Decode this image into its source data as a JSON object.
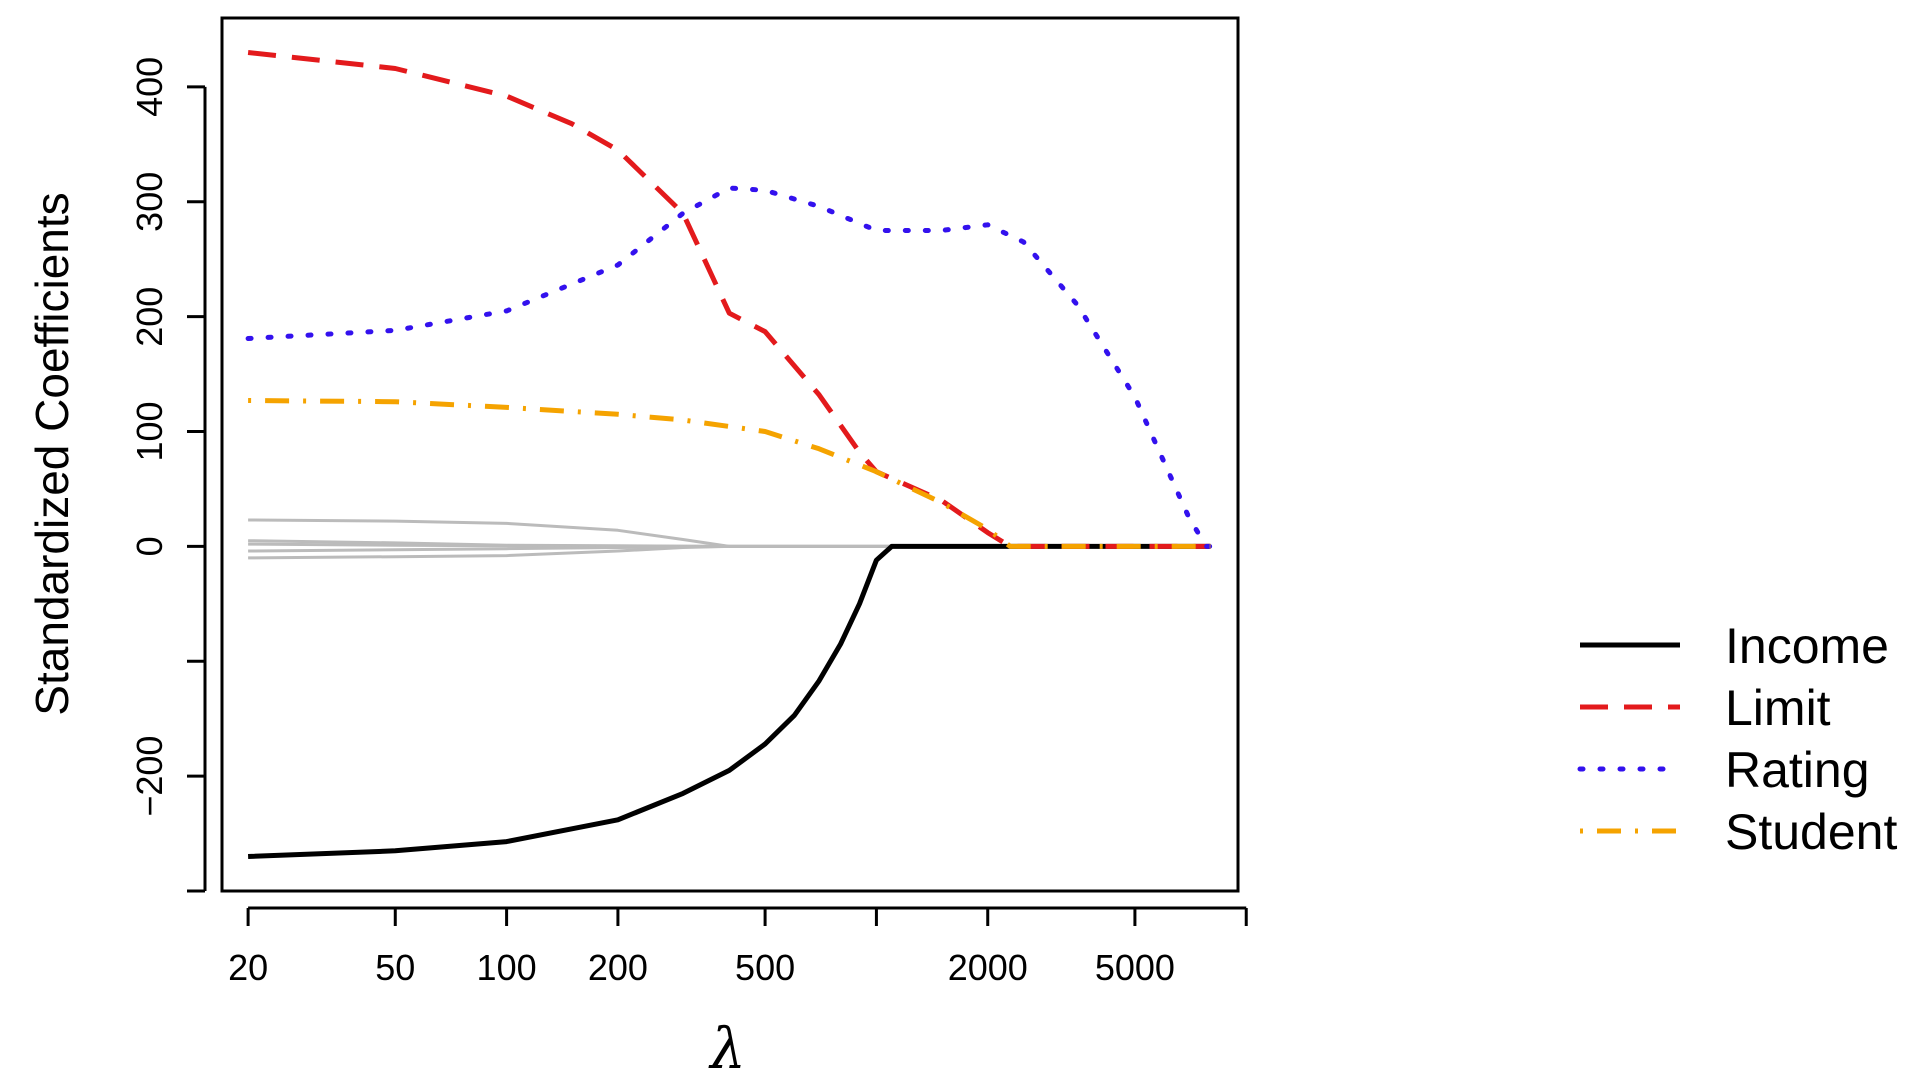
{
  "chart_data": {
    "type": "line",
    "title": "",
    "xlabel": "λ",
    "ylabel": "Standardized Coefficients",
    "x_scale": "log",
    "xlim": [
      17,
      9500
    ],
    "ylim": [
      -300,
      460
    ],
    "x_ticks": [
      20,
      50,
      100,
      200,
      500,
      1000,
      2000,
      5000,
      10000
    ],
    "x_tick_labels": [
      "20",
      "50",
      "100",
      "200",
      "500",
      "",
      "2000",
      "5000",
      ""
    ],
    "y_ticks": [
      -300,
      -200,
      -100,
      0,
      100,
      200,
      300,
      400
    ],
    "y_tick_labels": [
      "",
      "−200",
      "",
      "0",
      "100",
      "200",
      "300",
      "400"
    ],
    "grid": false,
    "legend_position": "right",
    "series": [
      {
        "name": "Income",
        "color": "#000000",
        "style": "solid",
        "points": [
          [
            20,
            -270
          ],
          [
            50,
            -265
          ],
          [
            100,
            -257
          ],
          [
            200,
            -238
          ],
          [
            300,
            -215
          ],
          [
            400,
            -195
          ],
          [
            500,
            -172
          ],
          [
            600,
            -147
          ],
          [
            700,
            -117
          ],
          [
            800,
            -85
          ],
          [
            900,
            -50
          ],
          [
            1000,
            -12
          ],
          [
            1100,
            0
          ],
          [
            8000,
            0
          ]
        ]
      },
      {
        "name": "Limit",
        "color": "#e31a1c",
        "style": "dashed",
        "points": [
          [
            20,
            430
          ],
          [
            50,
            416
          ],
          [
            100,
            392
          ],
          [
            150,
            368
          ],
          [
            200,
            345
          ],
          [
            300,
            290
          ],
          [
            400,
            203
          ],
          [
            500,
            187
          ],
          [
            700,
            132
          ],
          [
            900,
            82
          ],
          [
            1000,
            65
          ],
          [
            1500,
            40
          ],
          [
            2000,
            12
          ],
          [
            2300,
            0
          ],
          [
            8000,
            0
          ]
        ]
      },
      {
        "name": "Rating",
        "color": "#3311ee",
        "style": "dotted",
        "points": [
          [
            20,
            181
          ],
          [
            50,
            188
          ],
          [
            100,
            205
          ],
          [
            200,
            245
          ],
          [
            300,
            290
          ],
          [
            400,
            312
          ],
          [
            500,
            310
          ],
          [
            700,
            296
          ],
          [
            1000,
            275
          ],
          [
            1500,
            275
          ],
          [
            2000,
            280
          ],
          [
            2500,
            265
          ],
          [
            3500,
            210
          ],
          [
            5000,
            130
          ],
          [
            7000,
            25
          ],
          [
            7800,
            0
          ],
          [
            8000,
            0
          ]
        ]
      },
      {
        "name": "Student",
        "color": "#f5a300",
        "style": "dotdash",
        "points": [
          [
            20,
            127
          ],
          [
            50,
            126
          ],
          [
            100,
            121
          ],
          [
            200,
            115
          ],
          [
            300,
            110
          ],
          [
            500,
            100
          ],
          [
            700,
            85
          ],
          [
            1000,
            65
          ],
          [
            1500,
            38
          ],
          [
            2000,
            15
          ],
          [
            2300,
            0
          ],
          [
            8000,
            0
          ]
        ]
      },
      {
        "color": "#bbbbbb",
        "style": "solid",
        "points": [
          [
            20,
            23
          ],
          [
            50,
            22
          ],
          [
            100,
            20
          ],
          [
            200,
            14
          ],
          [
            300,
            6
          ],
          [
            400,
            0
          ],
          [
            8000,
            0
          ]
        ]
      },
      {
        "color": "#bbbbbb",
        "style": "solid",
        "points": [
          [
            20,
            5
          ],
          [
            50,
            3
          ],
          [
            100,
            1
          ],
          [
            200,
            0.5
          ],
          [
            400,
            0
          ],
          [
            8000,
            0
          ]
        ]
      },
      {
        "color": "#bbbbbb",
        "style": "solid",
        "points": [
          [
            20,
            2
          ],
          [
            50,
            1
          ],
          [
            100,
            0.5
          ],
          [
            200,
            0
          ],
          [
            8000,
            0
          ]
        ]
      },
      {
        "color": "#bbbbbb",
        "style": "solid",
        "points": [
          [
            20,
            -4
          ],
          [
            50,
            -3
          ],
          [
            100,
            -2
          ],
          [
            200,
            -1
          ],
          [
            400,
            0
          ],
          [
            8000,
            0
          ]
        ]
      },
      {
        "color": "#bbbbbb",
        "style": "solid",
        "points": [
          [
            20,
            -10
          ],
          [
            50,
            -9
          ],
          [
            100,
            -8
          ],
          [
            200,
            -4
          ],
          [
            300,
            -1
          ],
          [
            400,
            0
          ],
          [
            8000,
            0
          ]
        ]
      }
    ]
  }
}
